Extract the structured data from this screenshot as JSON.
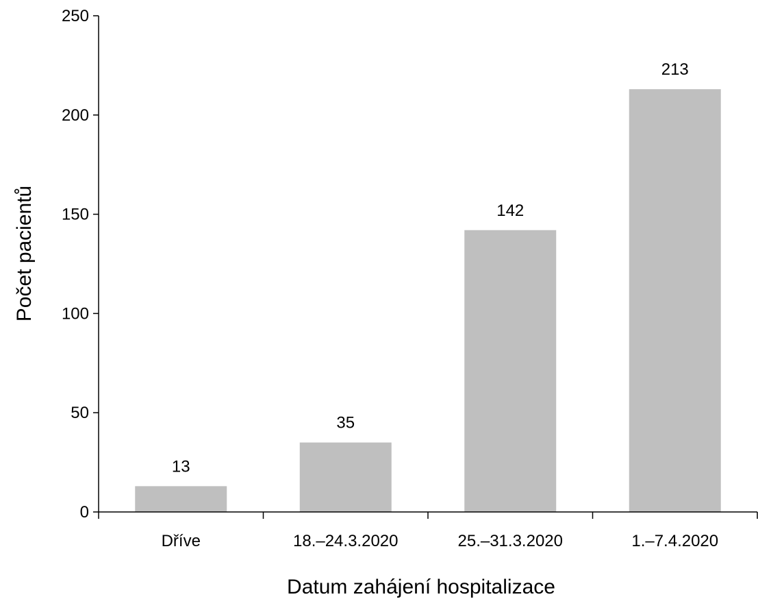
{
  "chart_data": {
    "type": "bar",
    "categories": [
      "Dříve",
      "18.–24.3.2020",
      "25.–31.3.2020",
      "1.–7.4.2020"
    ],
    "values": [
      13,
      35,
      142,
      213
    ],
    "data_labels": [
      "13",
      "35",
      "142",
      "213"
    ],
    "title": "",
    "xlabel": "Datum zahájení hospitalizace",
    "ylabel": "Počet pacientů",
    "ylim": [
      0,
      250
    ],
    "yticks": [
      0,
      50,
      100,
      150,
      200,
      250
    ],
    "ytick_labels": [
      "0",
      "50",
      "100",
      "150",
      "200",
      "250"
    ],
    "grid": false,
    "legend": "none",
    "bar_color": "#bfbfbf",
    "axis_color": "#000000"
  }
}
